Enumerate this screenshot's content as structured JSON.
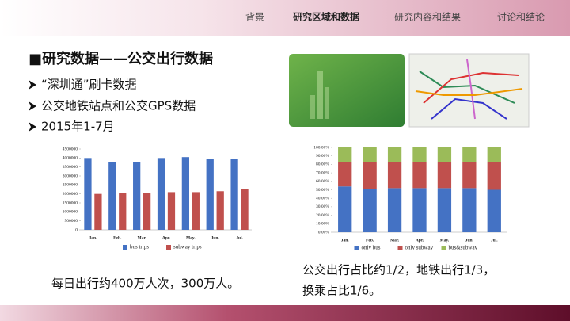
{
  "nav": [
    "背景",
    "研究区域和数据",
    "研究内容和结果",
    "讨论和结论"
  ],
  "title": "■研究数据——公交出行数据",
  "bullets": [
    "“深圳通”刷卡数据",
    "公交地铁站点和公交GPS数据",
    "2015年1-7月"
  ],
  "notes": [
    "每日出行约400万人次，300万人。",
    "公交出行占比约1/2，地铁出行1/3，",
    "换乘占比1/6。"
  ],
  "chart_data": [
    {
      "type": "bar",
      "stacked": false,
      "categories": [
        "Jan.",
        "Feb.",
        "Mar.",
        "Apr.",
        "May.",
        "Jun.",
        "Jul."
      ],
      "series": [
        {
          "name": "bus trips",
          "color": "#4472c4",
          "values": [
            4000000,
            3750000,
            3780000,
            4000000,
            4050000,
            3950000,
            3930000
          ]
        },
        {
          "name": "subway trips",
          "color": "#c0504d",
          "values": [
            2000000,
            2050000,
            2050000,
            2100000,
            2100000,
            2150000,
            2280000
          ]
        }
      ],
      "ylim": [
        0,
        4500000
      ],
      "yticks": [
        0,
        500000,
        1000000,
        1500000,
        2000000,
        2500000,
        3000000,
        3500000,
        4000000,
        4500000
      ]
    },
    {
      "type": "bar",
      "stacked": true,
      "categories": [
        "Jan.",
        "Feb.",
        "Mar.",
        "Apr.",
        "May.",
        "Jun.",
        "Jul."
      ],
      "series": [
        {
          "name": "only bus",
          "color": "#4472c4",
          "values": [
            54,
            51,
            52,
            52,
            52,
            52,
            50
          ]
        },
        {
          "name": "only subway",
          "color": "#c0504d",
          "values": [
            29,
            32,
            31,
            31,
            31,
            31,
            33
          ]
        },
        {
          "name": "bus&subway",
          "color": "#9bbb59",
          "values": [
            17,
            17,
            17,
            17,
            17,
            17,
            17
          ]
        }
      ],
      "ylim": [
        0,
        100
      ],
      "yticks": [
        {
          "value": 0,
          "label": "0.00%"
        },
        {
          "value": 10,
          "label": "10.00%"
        },
        {
          "value": 20,
          "label": "20.00%"
        },
        {
          "value": 30,
          "label": "30.00%"
        },
        {
          "value": 40,
          "label": "40.00%"
        },
        {
          "value": 50,
          "label": "50.00%"
        },
        {
          "value": 60,
          "label": "60.00%"
        },
        {
          "value": 70,
          "label": "70.00%"
        },
        {
          "value": 80,
          "label": "80.00%"
        },
        {
          "value": 90,
          "label": "90.00%"
        },
        {
          "value": 100,
          "label": "100.00%"
        }
      ]
    }
  ]
}
